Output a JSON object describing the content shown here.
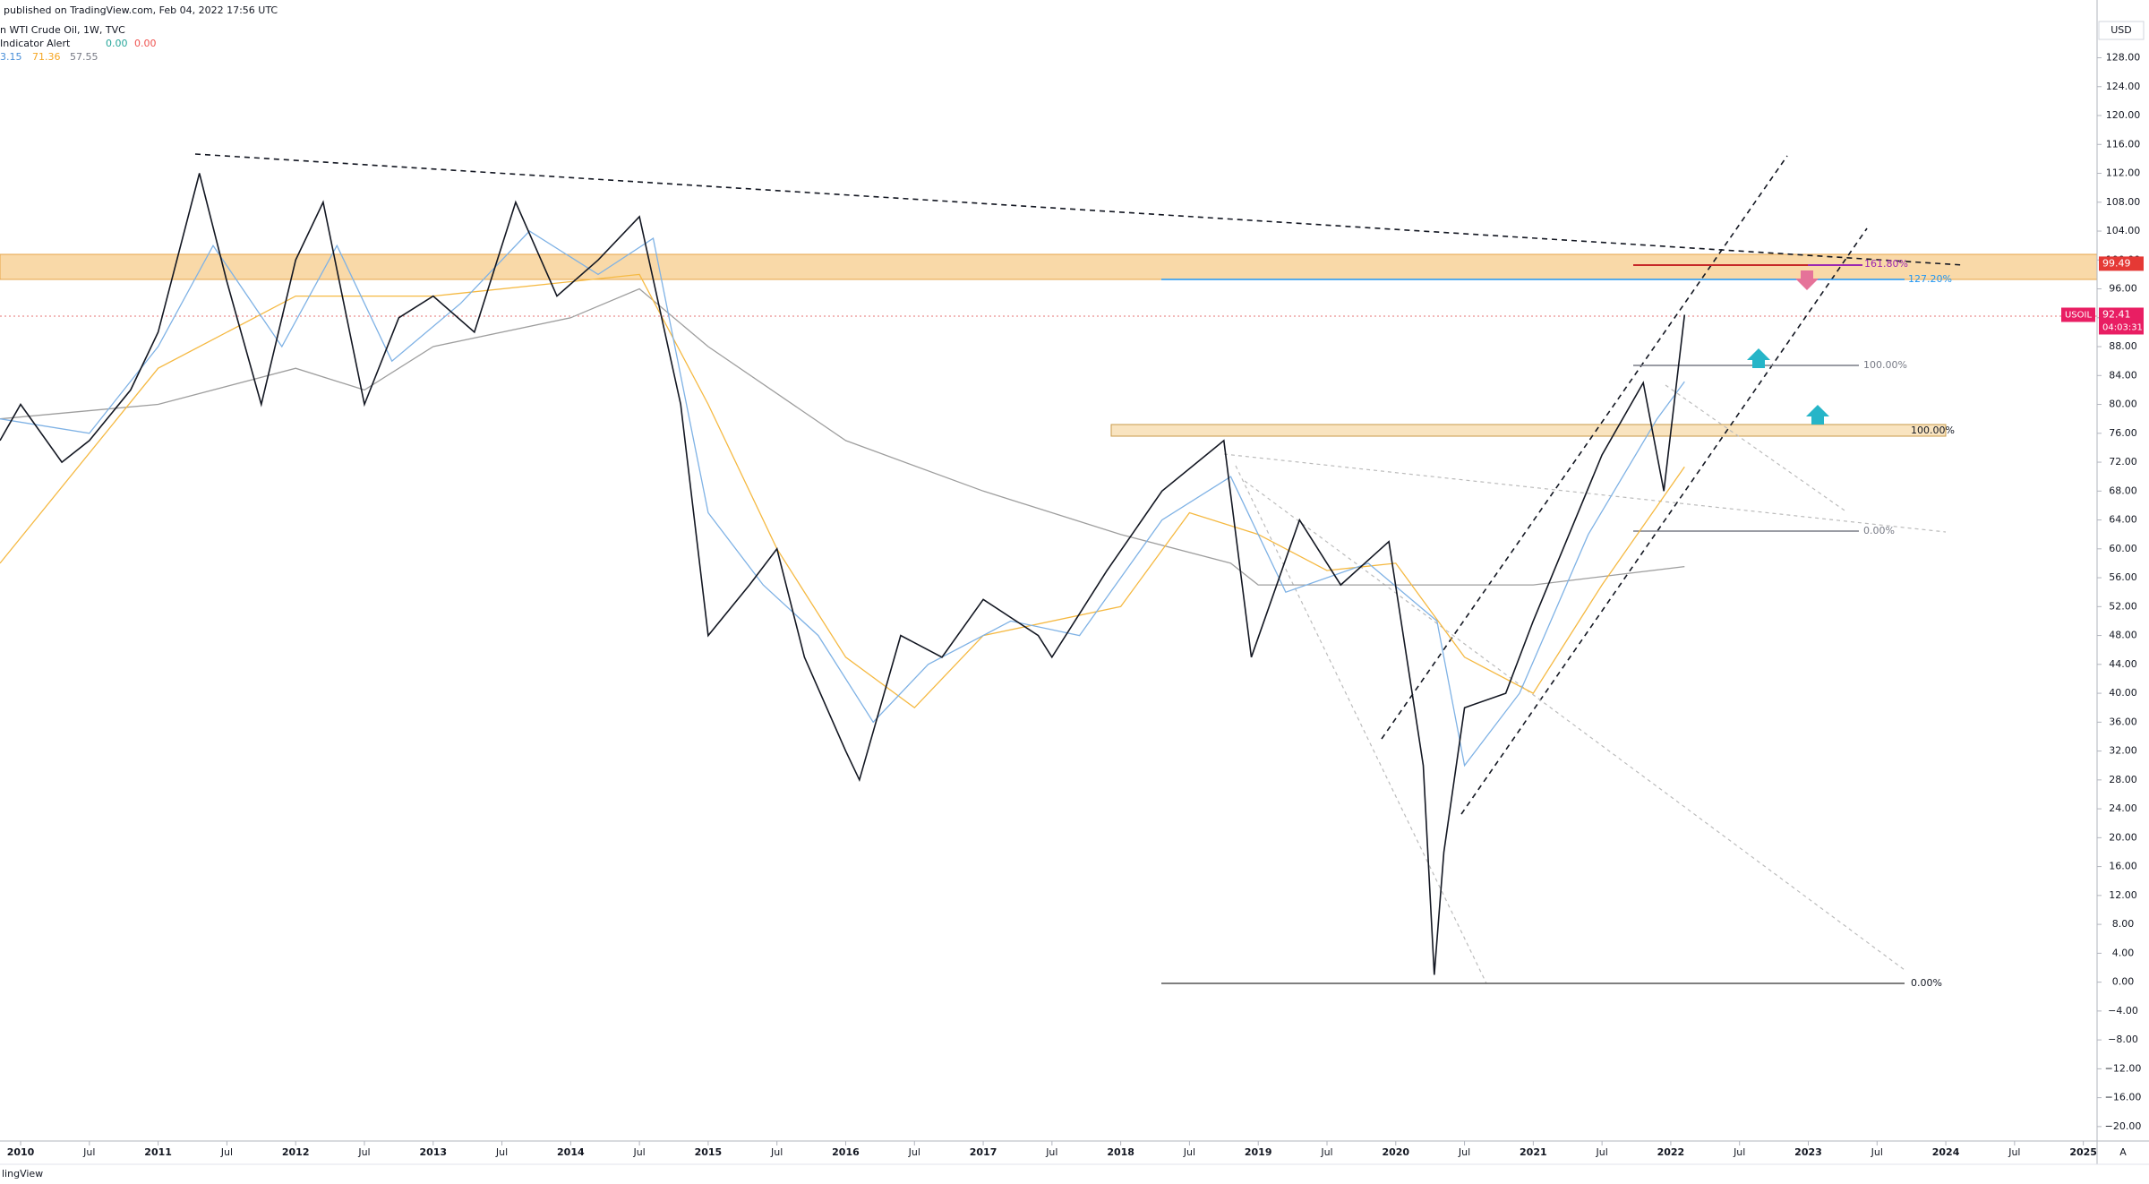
{
  "chart_data": {
    "type": "line",
    "header": [
      "published on TradingView.com, Feb 04, 2022 17:56 UTC",
      "n WTI Crude Oil, 1W, TVC",
      "Indicator Alert",
      "0.00",
      "0.00",
      "3.15",
      "71.36",
      "57.55"
    ],
    "axis_unit": "USD",
    "footer": "lingView",
    "corner": "A",
    "series": [
      {
        "color": "#131722",
        "x": [
          2009.85,
          2010.0,
          2010.3,
          2010.5,
          2010.8,
          2011.0,
          2011.3,
          2011.5,
          2011.75,
          2012.0,
          2012.2,
          2012.5,
          2012.75,
          2013.0,
          2013.3,
          2013.6,
          2013.9,
          2014.2,
          2014.5,
          2014.8,
          2015.0,
          2015.3,
          2015.5,
          2015.7,
          2016.0,
          2016.1,
          2016.4,
          2016.7,
          2017.0,
          2017.4,
          2017.5,
          2017.9,
          2018.3,
          2018.75,
          2018.95,
          2019.3,
          2019.6,
          2019.95,
          2020.2,
          2020.28,
          2020.35,
          2020.5,
          2020.8,
          2021.0,
          2021.5,
          2021.8,
          2021.95,
          2022.1
        ],
        "values": [
          75,
          80,
          72,
          75,
          82,
          90,
          112,
          97,
          80,
          100,
          108,
          80,
          92,
          95,
          90,
          108,
          95,
          100,
          106,
          80,
          48,
          55,
          60,
          45,
          32,
          28,
          48,
          45,
          53,
          48,
          45,
          57,
          68,
          75,
          45,
          64,
          55,
          61,
          30,
          1,
          18,
          38,
          40,
          50,
          73,
          83,
          68,
          92.41
        ]
      },
      {
        "color": "#7fb2e5",
        "x": [
          2009.85,
          2010.5,
          2011.0,
          2011.4,
          2011.9,
          2012.3,
          2012.7,
          2013.2,
          2013.7,
          2014.2,
          2014.6,
          2015.0,
          2015.4,
          2015.8,
          2016.2,
          2016.6,
          2017.2,
          2017.7,
          2018.3,
          2018.8,
          2019.2,
          2019.8,
          2020.3,
          2020.5,
          2020.9,
          2021.4,
          2021.9,
          2022.1
        ],
        "values": [
          78,
          76,
          88,
          102,
          88,
          102,
          86,
          94,
          104,
          98,
          103,
          65,
          55,
          48,
          36,
          44,
          50,
          48,
          64,
          70,
          54,
          58,
          50,
          30,
          40,
          62,
          78,
          83.15
        ]
      },
      {
        "color": "#f5b942",
        "x": [
          2009.85,
          2011.0,
          2012.0,
          2013.0,
          2014.0,
          2014.5,
          2015.0,
          2015.5,
          2016.0,
          2016.5,
          2017.0,
          2018.0,
          2018.5,
          2019.0,
          2019.5,
          2020.0,
          2020.5,
          2021.0,
          2021.5,
          2022.1
        ],
        "values": [
          58,
          85,
          95,
          95,
          97,
          98,
          80,
          60,
          45,
          38,
          48,
          52,
          65,
          62,
          57,
          58,
          45,
          40,
          55,
          71.36
        ]
      },
      {
        "color": "#9e9e9e",
        "x": [
          2009.85,
          2011.0,
          2012.0,
          2012.5,
          2013.0,
          2014.0,
          2014.5,
          2015.0,
          2016.0,
          2017.0,
          2018.0,
          2018.8,
          2019.0,
          2020.0,
          2021.0,
          2022.1
        ],
        "values": [
          78,
          80,
          85,
          82,
          88,
          92,
          96,
          88,
          75,
          68,
          62,
          58,
          55,
          55,
          55,
          57.55
        ]
      }
    ],
    "annotations": [
      "161.80%",
      "127.20%",
      "100.00%",
      "0.00%",
      "100.00%",
      "0.00%"
    ],
    "price_tags": [
      {
        "value": 99.49,
        "color": "#e53935"
      },
      {
        "value": 92.41,
        "color": "#e91e63"
      }
    ],
    "symbol": "USOIL",
    "countdown": "04:03:31",
    "xlim": [
      2009.85,
      2025.1
    ],
    "ylim": [
      -22,
      136
    ],
    "xticks": [
      {
        "value": 2010,
        "label": "2010"
      },
      {
        "value": 2010.5,
        "label": "Jul"
      },
      {
        "value": 2011,
        "label": "2011"
      },
      {
        "value": 2011.5,
        "label": "Jul"
      },
      {
        "value": 2012,
        "label": "2012"
      },
      {
        "value": 2012.5,
        "label": "Jul"
      },
      {
        "value": 2013,
        "label": "2013"
      },
      {
        "value": 2013.5,
        "label": "Jul"
      },
      {
        "value": 2014,
        "label": "2014"
      },
      {
        "value": 2014.5,
        "label": "Jul"
      },
      {
        "value": 2015,
        "label": "2015"
      },
      {
        "value": 2015.5,
        "label": "Jul"
      },
      {
        "value": 2016,
        "label": "2016"
      },
      {
        "value": 2016.5,
        "label": "Jul"
      },
      {
        "value": 2017,
        "label": "2017"
      },
      {
        "value": 2017.5,
        "label": "Jul"
      },
      {
        "value": 2018,
        "label": "2018"
      },
      {
        "value": 2018.5,
        "label": "Jul"
      },
      {
        "value": 2019,
        "label": "2019"
      },
      {
        "value": 2019.5,
        "label": "Jul"
      },
      {
        "value": 2020,
        "label": "2020"
      },
      {
        "value": 2020.5,
        "label": "Jul"
      },
      {
        "value": 2021,
        "label": "2021"
      },
      {
        "value": 2021.5,
        "label": "Jul"
      },
      {
        "value": 2022,
        "label": "2022"
      },
      {
        "value": 2022.5,
        "label": "Jul"
      },
      {
        "value": 2023,
        "label": "2023"
      },
      {
        "value": 2023.5,
        "label": "Jul"
      },
      {
        "value": 2024,
        "label": "2024"
      },
      {
        "value": 2024.5,
        "label": "Jul"
      },
      {
        "value": 2025,
        "label": "2025"
      }
    ],
    "yticks": [
      {
        "value": 128,
        "label": "128.00"
      },
      {
        "value": 124,
        "label": "124.00"
      },
      {
        "value": 120,
        "label": "120.00"
      },
      {
        "value": 116,
        "label": "116.00"
      },
      {
        "value": 112,
        "label": "112.00"
      },
      {
        "value": 108,
        "label": "108.00"
      },
      {
        "value": 104,
        "label": "104.00"
      },
      {
        "value": 100,
        "label": "100.00"
      },
      {
        "value": 96,
        "label": "96.00"
      },
      {
        "value": 92,
        "label": "92.00"
      },
      {
        "value": 88,
        "label": "88.00"
      },
      {
        "value": 84,
        "label": "84.00"
      },
      {
        "value": 80,
        "label": "80.00"
      },
      {
        "value": 76,
        "label": "76.00"
      },
      {
        "value": 72,
        "label": "72.00"
      },
      {
        "value": 68,
        "label": "68.00"
      },
      {
        "value": 64,
        "label": "64.00"
      },
      {
        "value": 60,
        "label": "60.00"
      },
      {
        "value": 56,
        "label": "56.00"
      },
      {
        "value": 52,
        "label": "52.00"
      },
      {
        "value": 48,
        "label": "48.00"
      },
      {
        "value": 44,
        "label": "44.00"
      },
      {
        "value": 40,
        "label": "40.00"
      },
      {
        "value": 36,
        "label": "36.00"
      },
      {
        "value": 32,
        "label": "32.00"
      },
      {
        "value": 28,
        "label": "28.00"
      },
      {
        "value": 24,
        "label": "24.00"
      },
      {
        "value": 20,
        "label": "20.00"
      },
      {
        "value": 16,
        "label": "16.00"
      },
      {
        "value": 12,
        "label": "12.00"
      },
      {
        "value": 8,
        "label": "8.00"
      },
      {
        "value": 4,
        "label": "4.00"
      },
      {
        "value": 0,
        "label": "0.00"
      },
      {
        "value": -4,
        "label": "−4.00"
      },
      {
        "value": -8,
        "label": "−8.00"
      },
      {
        "value": -12,
        "label": "−12.00"
      },
      {
        "value": -16,
        "label": "−16.00"
      },
      {
        "value": -20,
        "label": "−20.00"
      }
    ],
    "grid": false
  }
}
